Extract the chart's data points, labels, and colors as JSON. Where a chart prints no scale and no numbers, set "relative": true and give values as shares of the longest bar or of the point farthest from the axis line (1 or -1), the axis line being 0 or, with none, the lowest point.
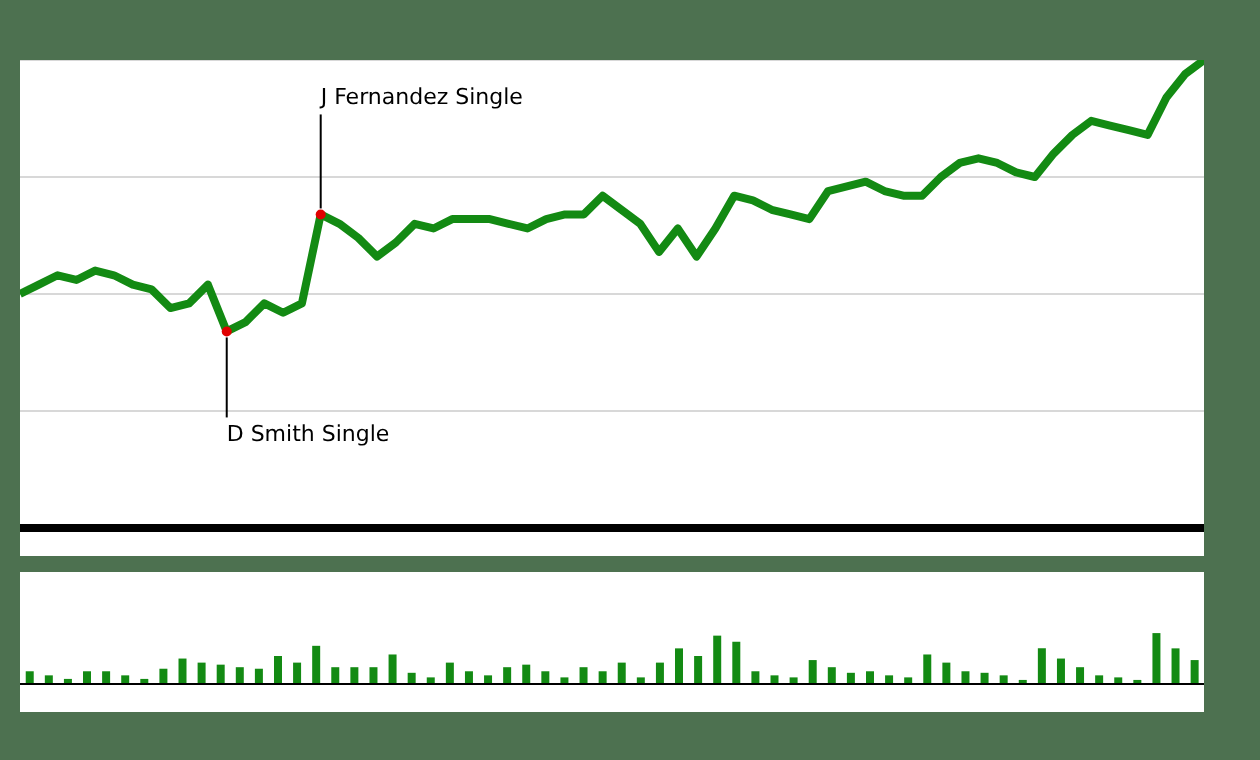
{
  "chart_data": [
    {
      "type": "line",
      "relative": true,
      "grid": "y",
      "marker": "none",
      "line_style": "solid",
      "categories": [
        null,
        null,
        null,
        null,
        null,
        null,
        null,
        null,
        null,
        null,
        null,
        null,
        null,
        null,
        null,
        null,
        null,
        null,
        null,
        null,
        null,
        null,
        null,
        null,
        null,
        null,
        null,
        null,
        null,
        null,
        null,
        null,
        null,
        null,
        null,
        null,
        null,
        null,
        null,
        null,
        null,
        null,
        null,
        null,
        null,
        null,
        null,
        null,
        null,
        null,
        null,
        null,
        null,
        null,
        null,
        null,
        null,
        null,
        null,
        null,
        null,
        null,
        null,
        null
      ],
      "series": [
        {
          "color": "#138a13",
          "values": [
            0.5,
            0.52,
            0.54,
            0.53,
            0.55,
            0.54,
            0.52,
            0.51,
            0.47,
            0.48,
            0.52,
            0.42,
            0.44,
            0.48,
            0.46,
            0.48,
            0.67,
            0.65,
            0.62,
            0.58,
            0.61,
            0.65,
            0.64,
            0.66,
            0.66,
            0.66,
            0.65,
            0.64,
            0.66,
            0.67,
            0.67,
            0.71,
            0.68,
            0.65,
            0.59,
            0.64,
            0.58,
            0.64,
            0.71,
            0.7,
            0.68,
            0.67,
            0.66,
            0.72,
            0.73,
            0.74,
            0.72,
            0.71,
            0.71,
            0.75,
            0.78,
            0.79,
            0.78,
            0.76,
            0.75,
            0.8,
            0.84,
            0.87,
            0.86,
            0.85,
            0.84,
            0.92,
            0.97,
            1
          ]
        }
      ],
      "annotations": [
        "D Smith Single",
        "J Fernandez Single"
      ]
    },
    {
      "type": "bar",
      "relative": true,
      "categories": [
        null,
        null,
        null,
        null,
        null,
        null,
        null,
        null,
        null,
        null,
        null,
        null,
        null,
        null,
        null,
        null,
        null,
        null,
        null,
        null,
        null,
        null,
        null,
        null,
        null,
        null,
        null,
        null,
        null,
        null,
        null,
        null,
        null,
        null,
        null,
        null,
        null,
        null,
        null,
        null,
        null,
        null,
        null,
        null,
        null,
        null,
        null,
        null,
        null,
        null,
        null,
        null,
        null,
        null,
        null,
        null,
        null,
        null,
        null,
        null,
        null,
        null
      ],
      "series": [
        {
          "color": "#138a13",
          "values": [
            0.25,
            0.17,
            0.1,
            0.25,
            0.25,
            0.17,
            0.1,
            0.3,
            0.5,
            0.42,
            0.38,
            0.33,
            0.3,
            0.55,
            0.42,
            0.75,
            0.33,
            0.33,
            0.33,
            0.58,
            0.22,
            0.13,
            0.42,
            0.25,
            0.17,
            0.33,
            0.38,
            0.25,
            0.13,
            0.33,
            0.25,
            0.42,
            0.13,
            0.42,
            0.7,
            0.55,
            0.95,
            0.83,
            0.25,
            0.17,
            0.13,
            0.47,
            0.33,
            0.22,
            0.25,
            0.17,
            0.13,
            0.58,
            0.42,
            0.25,
            0.22,
            0.17,
            0.08,
            0.7,
            0.5,
            0.33,
            0.17,
            0.13,
            0.08,
            1,
            0.7,
            0.47
          ]
        }
      ]
    }
  ]
}
